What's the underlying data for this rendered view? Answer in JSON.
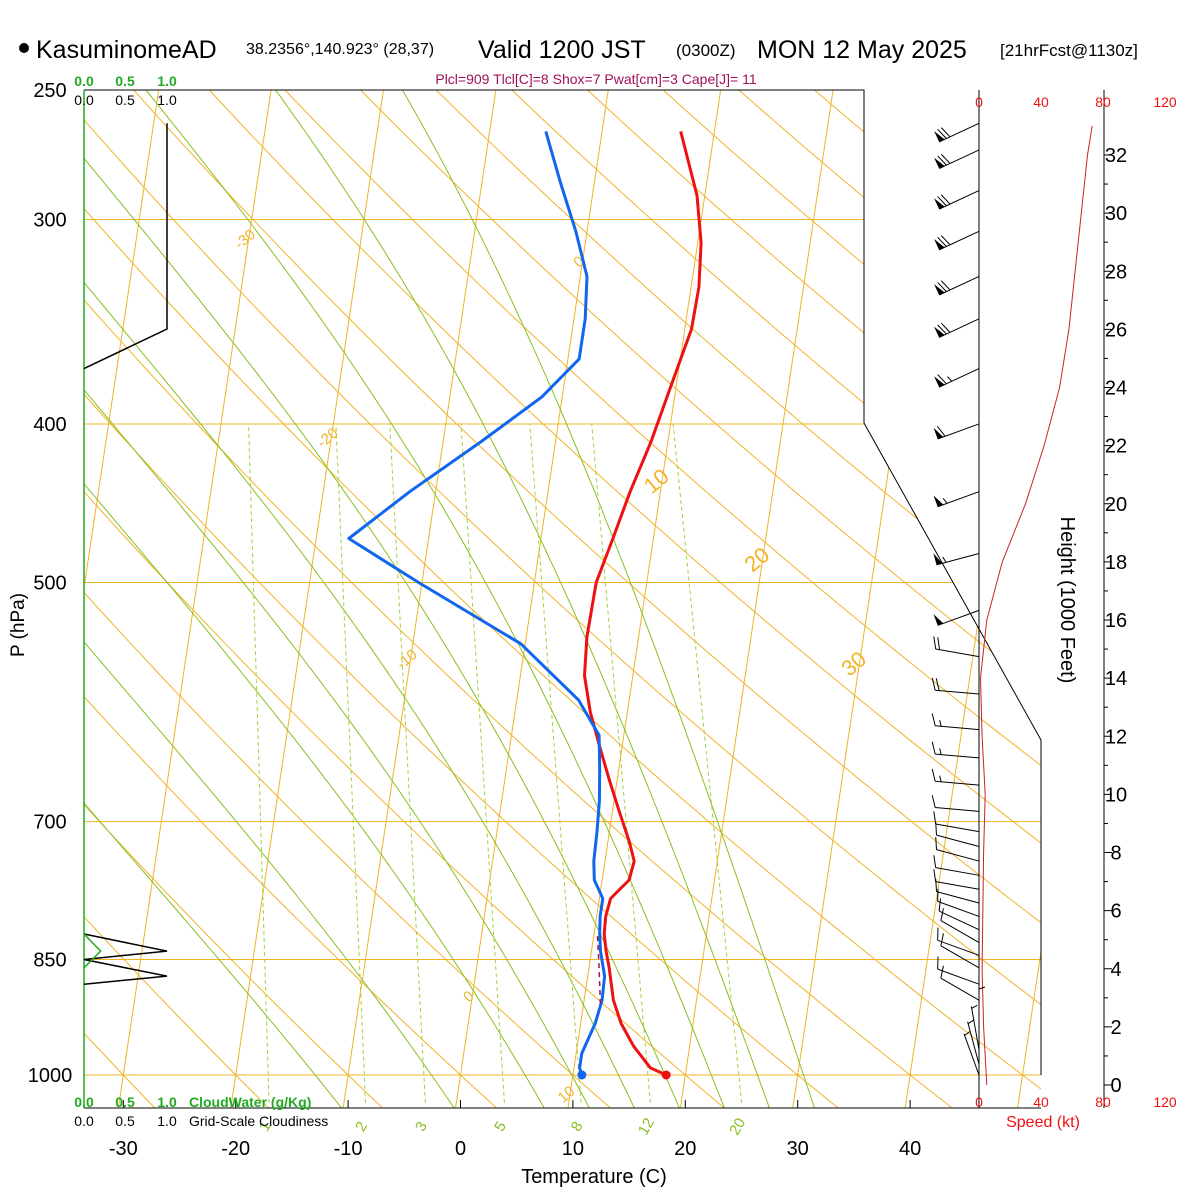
{
  "header": {
    "station": "KasuminomeAD",
    "coords": "38.2356°,140.923° (28,37)",
    "valid": "Valid 1200 JST",
    "utc": "(0300Z)",
    "date": "MON 12 May 2025",
    "forecast": "[21hrFcst@1130z]",
    "indices": "Plcl=909 Tlcl[C]=8 Shox=7 Pwat[cm]=3 Cape[J]= 11"
  },
  "colors": {
    "temperature": "#ee1111",
    "dewpoint": "#1166ee",
    "isotherm": "#f0b428",
    "dry_adiabat": "#f0b428",
    "moist_adiabat": "#88c020",
    "mixing_ratio": "#a8d040",
    "cloud_water": "#22aa22",
    "speed_profile": "#cc2222",
    "speed_axis": "#ee1111"
  },
  "cloud_axis": {
    "scale_ticks": [
      "0.0",
      "0.5",
      "1.0"
    ],
    "cloudwater_label": "CloudWater (g/Kg)",
    "cloudiness_label": "Grid-Scale Cloudiness"
  },
  "speed_axis": {
    "ticks": [
      "0",
      "40",
      "80",
      "120"
    ],
    "label": "Speed (kt)"
  },
  "height_axis": {
    "label": "Height (1000 Feet)",
    "ticks": [
      "0",
      "2",
      "4",
      "6",
      "8",
      "10",
      "12",
      "14",
      "16",
      "18",
      "20",
      "22",
      "24",
      "26",
      "28",
      "30",
      "32"
    ]
  },
  "chart_data": {
    "type": "line",
    "title": "Valid 1200 JST (0300Z) MON 12 May 2025",
    "xlabel": "Temperature (C)",
    "ylabel": "P (hPa)",
    "pressure_scale": "log",
    "xlim": [
      -33,
      47
    ],
    "ylim": [
      1025,
      250
    ],
    "x_ticks": [
      -30,
      -20,
      -10,
      0,
      10,
      20,
      30,
      40
    ],
    "p_ticks": [
      250,
      300,
      400,
      500,
      700,
      850,
      1000
    ],
    "isotherm_labels": [
      {
        "value": "10",
        "t": 10,
        "p": 1033
      },
      {
        "value": "0",
        "t": 0,
        "p": 900
      },
      {
        "value": "-10",
        "t": -10,
        "p": 560
      },
      {
        "value": "-20",
        "t": -20,
        "p": 410
      },
      {
        "value": "-30",
        "t": -30,
        "p": 310
      },
      {
        "value": "0",
        "t": 0,
        "p": 320
      },
      {
        "value": "10",
        "t": 10,
        "p": 437
      },
      {
        "value": "20",
        "t": 20,
        "p": 488
      },
      {
        "value": "30",
        "t": 30,
        "p": 565
      }
    ],
    "mixing_ratio_labels": [
      "1",
      "2",
      "3",
      "5",
      "8",
      "12",
      "20"
    ],
    "series": [
      {
        "name": "Temperature",
        "points": [
          [
            18.3,
            1000
          ],
          [
            16.8,
            990
          ],
          [
            15.0,
            960
          ],
          [
            13.6,
            930
          ],
          [
            12.6,
            900
          ],
          [
            12.2,
            880
          ],
          [
            11.8,
            860
          ],
          [
            11.3,
            840
          ],
          [
            10.9,
            820
          ],
          [
            10.8,
            800
          ],
          [
            11.0,
            780
          ],
          [
            12.4,
            760
          ],
          [
            12.6,
            740
          ],
          [
            11.9,
            720
          ],
          [
            10.6,
            690
          ],
          [
            9.3,
            660
          ],
          [
            8.0,
            630
          ],
          [
            6.7,
            600
          ],
          [
            5.7,
            570
          ],
          [
            5.4,
            540
          ],
          [
            5.5,
            500
          ],
          [
            6.4,
            470
          ],
          [
            7.3,
            440
          ],
          [
            8.5,
            410
          ],
          [
            9.5,
            380
          ],
          [
            10.6,
            350
          ],
          [
            10.7,
            330
          ],
          [
            10.3,
            310
          ],
          [
            9.3,
            290
          ],
          [
            7.0,
            265
          ]
        ]
      },
      {
        "name": "Dewpoint",
        "points": [
          [
            10.8,
            1000
          ],
          [
            10.5,
            990
          ],
          [
            10.5,
            970
          ],
          [
            11.3,
            930
          ],
          [
            11.6,
            900
          ],
          [
            11.5,
            870
          ],
          [
            10.8,
            840
          ],
          [
            10.5,
            820
          ],
          [
            10.3,
            800
          ],
          [
            10.3,
            780
          ],
          [
            9.3,
            760
          ],
          [
            9.0,
            740
          ],
          [
            8.9,
            710
          ],
          [
            8.7,
            680
          ],
          [
            8.3,
            650
          ],
          [
            7.8,
            620
          ],
          [
            5.5,
            590
          ],
          [
            -0.4,
            545
          ],
          [
            -10.3,
            500
          ],
          [
            -17.1,
            470
          ],
          [
            -12.3,
            440
          ],
          [
            -6.6,
            410
          ],
          [
            -1.8,
            385
          ],
          [
            1.0,
            365
          ],
          [
            1.0,
            345
          ],
          [
            0.6,
            325
          ],
          [
            -1.0,
            305
          ],
          [
            -3.0,
            285
          ],
          [
            -5.0,
            265
          ]
        ]
      },
      {
        "name": "Cloudiness",
        "points": [
          [
            0,
            820
          ],
          [
            1,
            840
          ],
          [
            0,
            850
          ],
          [
            1,
            870
          ],
          [
            0,
            880
          ]
        ]
      },
      {
        "name": "CloudWater",
        "points": [
          [
            0,
            820
          ],
          [
            0.2,
            840
          ],
          [
            0,
            860
          ]
        ]
      },
      {
        "name": "WindSpeed",
        "points": [
          [
            5,
            0
          ],
          [
            3,
            2
          ],
          [
            2,
            4
          ],
          [
            3,
            8
          ],
          [
            4,
            10
          ],
          [
            2,
            12
          ],
          [
            1,
            14
          ],
          [
            5,
            16
          ],
          [
            15,
            18
          ],
          [
            30,
            20
          ],
          [
            42,
            22
          ],
          [
            52,
            24
          ],
          [
            58,
            26
          ],
          [
            62,
            28
          ],
          [
            66,
            30
          ],
          [
            70,
            32
          ],
          [
            73,
            33
          ]
        ]
      }
    ],
    "wind_barbs": [
      {
        "p": 1000,
        "dir": 340,
        "spd": 5
      },
      {
        "p": 985,
        "dir": 345,
        "spd": 5
      },
      {
        "p": 965,
        "dir": 350,
        "spd": 5
      },
      {
        "p": 940,
        "dir": 0,
        "spd": 5
      },
      {
        "p": 900,
        "dir": 300,
        "spd": 10
      },
      {
        "p": 880,
        "dir": 290,
        "spd": 10
      },
      {
        "p": 860,
        "dir": 300,
        "spd": 10
      },
      {
        "p": 845,
        "dir": 290,
        "spd": 10
      },
      {
        "p": 830,
        "dir": 300,
        "spd": 10
      },
      {
        "p": 815,
        "dir": 295,
        "spd": 10
      },
      {
        "p": 800,
        "dir": 290,
        "spd": 10
      },
      {
        "p": 785,
        "dir": 285,
        "spd": 10
      },
      {
        "p": 770,
        "dir": 280,
        "spd": 10
      },
      {
        "p": 755,
        "dir": 280,
        "spd": 10
      },
      {
        "p": 740,
        "dir": 285,
        "spd": 10
      },
      {
        "p": 725,
        "dir": 285,
        "spd": 10
      },
      {
        "p": 710,
        "dir": 280,
        "spd": 10
      },
      {
        "p": 690,
        "dir": 275,
        "spd": 10
      },
      {
        "p": 665,
        "dir": 275,
        "spd": 15
      },
      {
        "p": 640,
        "dir": 275,
        "spd": 15
      },
      {
        "p": 615,
        "dir": 275,
        "spd": 15
      },
      {
        "p": 585,
        "dir": 275,
        "spd": 20
      },
      {
        "p": 555,
        "dir": 280,
        "spd": 20
      },
      {
        "p": 520,
        "dir": 250,
        "spd": 50
      },
      {
        "p": 480,
        "dir": 255,
        "spd": 55
      },
      {
        "p": 440,
        "dir": 250,
        "spd": 55
      },
      {
        "p": 400,
        "dir": 250,
        "spd": 60
      },
      {
        "p": 370,
        "dir": 245,
        "spd": 65
      },
      {
        "p": 345,
        "dir": 245,
        "spd": 70
      },
      {
        "p": 325,
        "dir": 245,
        "spd": 70
      },
      {
        "p": 305,
        "dir": 245,
        "spd": 70
      },
      {
        "p": 288,
        "dir": 245,
        "spd": 70
      },
      {
        "p": 272,
        "dir": 245,
        "spd": 70
      },
      {
        "p": 262,
        "dir": 245,
        "spd": 70
      }
    ]
  }
}
